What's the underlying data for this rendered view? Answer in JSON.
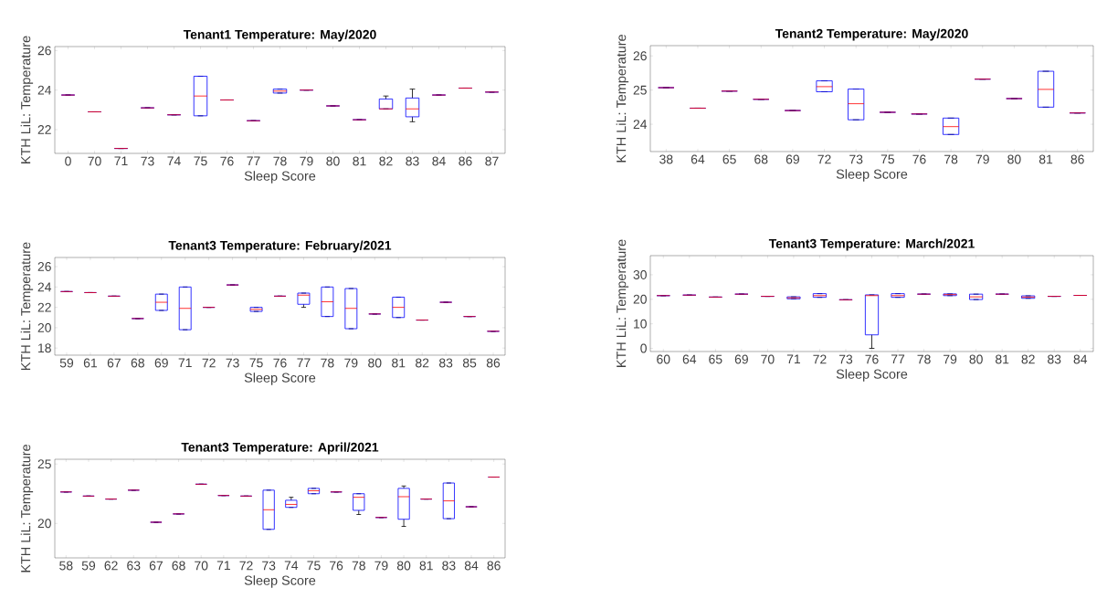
{
  "chart_data": [
    {
      "type": "box",
      "title": "Tenant1 Temperature: May/2020",
      "xlabel": "Sleep Score",
      "ylabel": "KTH LiL: Temperature",
      "ylim": [
        20.8,
        26.2
      ],
      "yticks": [
        22,
        24,
        26
      ],
      "grid": false,
      "categories": [
        "0",
        "70",
        "71",
        "73",
        "74",
        "75",
        "76",
        "77",
        "78",
        "79",
        "80",
        "81",
        "82",
        "83",
        "84",
        "86",
        "87"
      ],
      "boxes": [
        {
          "low": 23.75,
          "q1": 23.75,
          "median": 23.75,
          "q3": 23.75,
          "high": 23.75
        },
        {
          "low": 22.9,
          "q1": 22.9,
          "median": 22.9,
          "q3": 22.9,
          "high": 22.9
        },
        {
          "low": 21.05,
          "q1": 21.05,
          "median": 21.05,
          "q3": 21.05,
          "high": 21.05
        },
        {
          "low": 23.1,
          "q1": 23.1,
          "median": 23.1,
          "q3": 23.1,
          "high": 23.1
        },
        {
          "low": 22.75,
          "q1": 22.75,
          "median": 22.75,
          "q3": 22.75,
          "high": 22.75
        },
        {
          "low": 22.7,
          "q1": 22.7,
          "median": 23.7,
          "q3": 24.7,
          "high": 24.7
        },
        {
          "low": 23.5,
          "q1": 23.5,
          "median": 23.5,
          "q3": 23.5,
          "high": 23.5
        },
        {
          "low": 22.45,
          "q1": 22.45,
          "median": 22.45,
          "q3": 22.45,
          "high": 22.45
        },
        {
          "low": 23.85,
          "q1": 23.85,
          "median": 23.95,
          "q3": 24.05,
          "high": 24.05
        },
        {
          "low": 24.0,
          "q1": 24.0,
          "median": 24.0,
          "q3": 24.0,
          "high": 24.0
        },
        {
          "low": 23.2,
          "q1": 23.2,
          "median": 23.2,
          "q3": 23.2,
          "high": 23.2
        },
        {
          "low": 22.5,
          "q1": 22.5,
          "median": 22.5,
          "q3": 22.5,
          "high": 22.5
        },
        {
          "low": 23.05,
          "q1": 23.05,
          "median": 23.05,
          "q3": 23.55,
          "high": 23.7
        },
        {
          "low": 22.4,
          "q1": 22.65,
          "median": 23.05,
          "q3": 23.6,
          "high": 24.05
        },
        {
          "low": 23.75,
          "q1": 23.75,
          "median": 23.75,
          "q3": 23.75,
          "high": 23.75
        },
        {
          "low": 24.1,
          "q1": 24.1,
          "median": 24.1,
          "q3": 24.1,
          "high": 24.1
        },
        {
          "low": 23.9,
          "q1": 23.9,
          "median": 23.9,
          "q3": 23.9,
          "high": 23.9
        }
      ]
    },
    {
      "type": "box",
      "title": "Tenant2 Temperature: May/2020",
      "xlabel": "Sleep Score",
      "ylabel": "KTH LiL: Temperature",
      "ylim": [
        23.2,
        26.3
      ],
      "yticks": [
        24,
        25,
        26
      ],
      "grid": false,
      "categories": [
        "38",
        "64",
        "65",
        "68",
        "69",
        "72",
        "73",
        "75",
        "76",
        "78",
        "79",
        "80",
        "81",
        "86"
      ],
      "boxes": [
        {
          "low": 25.07,
          "q1": 25.07,
          "median": 25.07,
          "q3": 25.07,
          "high": 25.07
        },
        {
          "low": 24.47,
          "q1": 24.47,
          "median": 24.47,
          "q3": 24.47,
          "high": 24.47
        },
        {
          "low": 24.97,
          "q1": 24.97,
          "median": 24.97,
          "q3": 24.97,
          "high": 24.97
        },
        {
          "low": 24.73,
          "q1": 24.73,
          "median": 24.73,
          "q3": 24.73,
          "high": 24.73
        },
        {
          "low": 24.4,
          "q1": 24.4,
          "median": 24.4,
          "q3": 24.4,
          "high": 24.4
        },
        {
          "low": 24.95,
          "q1": 24.95,
          "median": 25.1,
          "q3": 25.27,
          "high": 25.27
        },
        {
          "low": 24.13,
          "q1": 24.13,
          "median": 24.6,
          "q3": 25.03,
          "high": 25.03
        },
        {
          "low": 24.35,
          "q1": 24.35,
          "median": 24.35,
          "q3": 24.35,
          "high": 24.35
        },
        {
          "low": 24.3,
          "q1": 24.3,
          "median": 24.3,
          "q3": 24.3,
          "high": 24.3
        },
        {
          "low": 23.7,
          "q1": 23.7,
          "median": 23.93,
          "q3": 24.18,
          "high": 24.18
        },
        {
          "low": 25.32,
          "q1": 25.32,
          "median": 25.32,
          "q3": 25.32,
          "high": 25.32
        },
        {
          "low": 24.75,
          "q1": 24.75,
          "median": 24.75,
          "q3": 24.75,
          "high": 24.75
        },
        {
          "low": 24.5,
          "q1": 24.5,
          "median": 25.02,
          "q3": 25.55,
          "high": 25.55
        },
        {
          "low": 24.33,
          "q1": 24.33,
          "median": 24.33,
          "q3": 24.33,
          "high": 24.33
        }
      ]
    },
    {
      "type": "box",
      "title": "Tenant3 Temperature: February/2021",
      "xlabel": "Sleep Score",
      "ylabel": "KTH LiL: Temperature",
      "ylim": [
        17.3,
        26.9
      ],
      "yticks": [
        18,
        20,
        22,
        24,
        26
      ],
      "grid": false,
      "categories": [
        "59",
        "61",
        "67",
        "68",
        "69",
        "71",
        "72",
        "73",
        "75",
        "76",
        "77",
        "78",
        "79",
        "80",
        "81",
        "82",
        "83",
        "85",
        "86"
      ],
      "boxes": [
        {
          "low": 23.55,
          "q1": 23.55,
          "median": 23.55,
          "q3": 23.55,
          "high": 23.55
        },
        {
          "low": 23.45,
          "q1": 23.45,
          "median": 23.45,
          "q3": 23.45,
          "high": 23.45
        },
        {
          "low": 23.1,
          "q1": 23.1,
          "median": 23.1,
          "q3": 23.1,
          "high": 23.1
        },
        {
          "low": 20.9,
          "q1": 20.9,
          "median": 20.9,
          "q3": 20.9,
          "high": 20.9
        },
        {
          "low": 21.7,
          "q1": 21.7,
          "median": 22.5,
          "q3": 23.3,
          "high": 23.3
        },
        {
          "low": 19.8,
          "q1": 19.8,
          "median": 21.9,
          "q3": 24.0,
          "high": 24.0
        },
        {
          "low": 22.0,
          "q1": 22.0,
          "median": 22.0,
          "q3": 22.0,
          "high": 22.0
        },
        {
          "low": 24.2,
          "q1": 24.2,
          "median": 24.2,
          "q3": 24.2,
          "high": 24.2
        },
        {
          "low": 21.6,
          "q1": 21.6,
          "median": 21.8,
          "q3": 22.0,
          "high": 22.0
        },
        {
          "low": 23.1,
          "q1": 23.1,
          "median": 23.1,
          "q3": 23.1,
          "high": 23.1
        },
        {
          "low": 22.0,
          "q1": 22.3,
          "median": 23.2,
          "q3": 23.4,
          "high": 23.4
        },
        {
          "low": 21.1,
          "q1": 21.1,
          "median": 22.55,
          "q3": 24.0,
          "high": 24.0
        },
        {
          "low": 19.9,
          "q1": 19.9,
          "median": 21.9,
          "q3": 23.85,
          "high": 23.85
        },
        {
          "low": 21.35,
          "q1": 21.35,
          "median": 21.35,
          "q3": 21.35,
          "high": 21.35
        },
        {
          "low": 21.0,
          "q1": 21.0,
          "median": 22.0,
          "q3": 23.0,
          "high": 23.0
        },
        {
          "low": 20.75,
          "q1": 20.75,
          "median": 20.75,
          "q3": 20.75,
          "high": 20.75
        },
        {
          "low": 22.5,
          "q1": 22.5,
          "median": 22.5,
          "q3": 22.5,
          "high": 22.5
        },
        {
          "low": 21.1,
          "q1": 21.1,
          "median": 21.1,
          "q3": 21.1,
          "high": 21.1
        },
        {
          "low": 19.65,
          "q1": 19.65,
          "median": 19.65,
          "q3": 19.65,
          "high": 19.65
        }
      ]
    },
    {
      "type": "box",
      "title": "Tenant3 Temperature: March/2021",
      "xlabel": "Sleep Score",
      "ylabel": "KTH LiL: Temperature",
      "ylim": [
        -1.3,
        37.8
      ],
      "yticks": [
        0,
        10,
        20,
        30
      ],
      "grid": false,
      "categories": [
        "60",
        "64",
        "65",
        "69",
        "70",
        "71",
        "72",
        "73",
        "76",
        "77",
        "78",
        "79",
        "80",
        "81",
        "82",
        "83",
        "84"
      ],
      "boxes": [
        {
          "low": 21.5,
          "q1": 21.5,
          "median": 21.5,
          "q3": 21.5,
          "high": 21.5
        },
        {
          "low": 21.7,
          "q1": 21.7,
          "median": 21.7,
          "q3": 21.7,
          "high": 21.7
        },
        {
          "low": 20.9,
          "q1": 20.9,
          "median": 20.9,
          "q3": 20.9,
          "high": 20.9
        },
        {
          "low": 22.1,
          "q1": 22.1,
          "median": 22.1,
          "q3": 22.1,
          "high": 22.1
        },
        {
          "low": 21.2,
          "q1": 21.2,
          "median": 21.2,
          "q3": 21.2,
          "high": 21.2
        },
        {
          "low": 20.2,
          "q1": 20.2,
          "median": 20.6,
          "q3": 21.0,
          "high": 21.0
        },
        {
          "low": 20.8,
          "q1": 20.8,
          "median": 21.5,
          "q3": 22.3,
          "high": 22.3
        },
        {
          "low": 19.8,
          "q1": 19.8,
          "median": 19.8,
          "q3": 19.8,
          "high": 19.8
        },
        {
          "low": 0,
          "q1": 5.5,
          "median": 21.5,
          "q3": 21.8,
          "high": 21.8
        },
        {
          "low": 20.8,
          "q1": 20.8,
          "median": 21.5,
          "q3": 22.3,
          "high": 22.3
        },
        {
          "low": 22.1,
          "q1": 22.1,
          "median": 22.1,
          "q3": 22.1,
          "high": 22.1
        },
        {
          "low": 21.5,
          "q1": 21.5,
          "median": 21.9,
          "q3": 22.2,
          "high": 22.2
        },
        {
          "low": 19.9,
          "q1": 19.9,
          "median": 21.0,
          "q3": 22.1,
          "high": 22.1
        },
        {
          "low": 22.1,
          "q1": 22.1,
          "median": 22.1,
          "q3": 22.1,
          "high": 22.1
        },
        {
          "low": 20.4,
          "q1": 20.4,
          "median": 20.9,
          "q3": 21.4,
          "high": 21.4
        },
        {
          "low": 21.2,
          "q1": 21.2,
          "median": 21.2,
          "q3": 21.2,
          "high": 21.2
        },
        {
          "low": 21.6,
          "q1": 21.6,
          "median": 21.6,
          "q3": 21.6,
          "high": 21.6
        }
      ]
    },
    {
      "type": "box",
      "title": "Tenant3 Temperature: April/2021",
      "xlabel": "Sleep Score",
      "ylabel": "KTH LiL: Temperature",
      "ylim": [
        17.1,
        25.4
      ],
      "yticks": [
        20,
        25
      ],
      "grid": false,
      "categories": [
        "58",
        "59",
        "62",
        "63",
        "67",
        "68",
        "70",
        "71",
        "72",
        "73",
        "74",
        "75",
        "76",
        "78",
        "79",
        "80",
        "81",
        "83",
        "84",
        "86"
      ],
      "boxes": [
        {
          "low": 22.65,
          "q1": 22.65,
          "median": 22.65,
          "q3": 22.65,
          "high": 22.65
        },
        {
          "low": 22.3,
          "q1": 22.3,
          "median": 22.3,
          "q3": 22.3,
          "high": 22.3
        },
        {
          "low": 22.05,
          "q1": 22.05,
          "median": 22.05,
          "q3": 22.05,
          "high": 22.05
        },
        {
          "low": 22.8,
          "q1": 22.8,
          "median": 22.8,
          "q3": 22.8,
          "high": 22.8
        },
        {
          "low": 20.1,
          "q1": 20.1,
          "median": 20.1,
          "q3": 20.1,
          "high": 20.1
        },
        {
          "low": 20.8,
          "q1": 20.8,
          "median": 20.8,
          "q3": 20.8,
          "high": 20.8
        },
        {
          "low": 23.3,
          "q1": 23.3,
          "median": 23.3,
          "q3": 23.3,
          "high": 23.3
        },
        {
          "low": 22.35,
          "q1": 22.35,
          "median": 22.35,
          "q3": 22.35,
          "high": 22.35
        },
        {
          "low": 22.3,
          "q1": 22.3,
          "median": 22.3,
          "q3": 22.3,
          "high": 22.3
        },
        {
          "low": 19.5,
          "q1": 19.5,
          "median": 21.15,
          "q3": 22.8,
          "high": 22.8
        },
        {
          "low": 21.35,
          "q1": 21.35,
          "median": 21.6,
          "q3": 21.95,
          "high": 22.2
        },
        {
          "low": 22.5,
          "q1": 22.5,
          "median": 22.75,
          "q3": 22.95,
          "high": 22.95
        },
        {
          "low": 22.65,
          "q1": 22.65,
          "median": 22.65,
          "q3": 22.65,
          "high": 22.65
        },
        {
          "low": 20.75,
          "q1": 21.1,
          "median": 22.2,
          "q3": 22.5,
          "high": 22.5
        },
        {
          "low": 20.5,
          "q1": 20.5,
          "median": 20.5,
          "q3": 20.5,
          "high": 20.5
        },
        {
          "low": 19.75,
          "q1": 20.35,
          "median": 22.25,
          "q3": 22.95,
          "high": 23.15
        },
        {
          "low": 22.05,
          "q1": 22.05,
          "median": 22.05,
          "q3": 22.05,
          "high": 22.05
        },
        {
          "low": 20.4,
          "q1": 20.4,
          "median": 21.9,
          "q3": 23.4,
          "high": 23.4
        },
        {
          "low": 21.4,
          "q1": 21.4,
          "median": 21.4,
          "q3": 21.4,
          "high": 21.4
        },
        {
          "low": 23.9,
          "q1": 23.9,
          "median": 23.9,
          "q3": 23.9,
          "high": 23.9
        }
      ]
    }
  ]
}
